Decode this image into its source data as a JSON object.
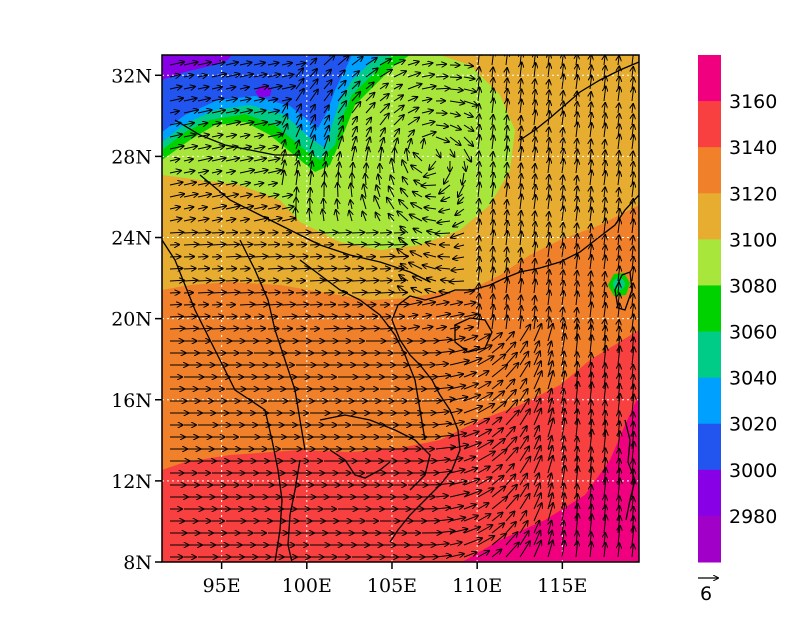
{
  "map": {
    "lat_labels": [
      "32N",
      "28N",
      "24N",
      "20N",
      "16N",
      "12N",
      "8N"
    ],
    "lon_labels": [
      "95E",
      "100E",
      "105E",
      "110E",
      "115E"
    ],
    "lat_values": [
      32,
      28,
      24,
      20,
      16,
      12,
      8
    ],
    "lon_values": [
      95,
      100,
      105,
      110,
      115
    ],
    "lat_range": [
      8,
      33
    ],
    "lon_range": [
      91.5,
      119.5
    ],
    "gridlines": "dotted"
  },
  "colorbar": {
    "labels": [
      "3160",
      "3140",
      "3120",
      "3100",
      "3080",
      "3060",
      "3040",
      "3020",
      "3000",
      "2980"
    ],
    "colors": [
      "#f0007f",
      "#f84040",
      "#f0802a",
      "#e6ad30",
      "#a8e63c",
      "#00d200",
      "#00cc88",
      "#00a0ff",
      "#2255f0",
      "#8800e6",
      "#a000c8"
    ]
  },
  "vector_legend": {
    "value": "6"
  },
  "fill_colors": {
    "magenta": "#f0007f",
    "red": "#f84040",
    "orange": "#f0802a",
    "gold": "#e6ad30",
    "lime": "#a8e63c",
    "green": "#00d200",
    "teal": "#00cc88",
    "sky": "#00a0ff",
    "blue": "#2255f0",
    "purple": "#8800e6"
  }
}
